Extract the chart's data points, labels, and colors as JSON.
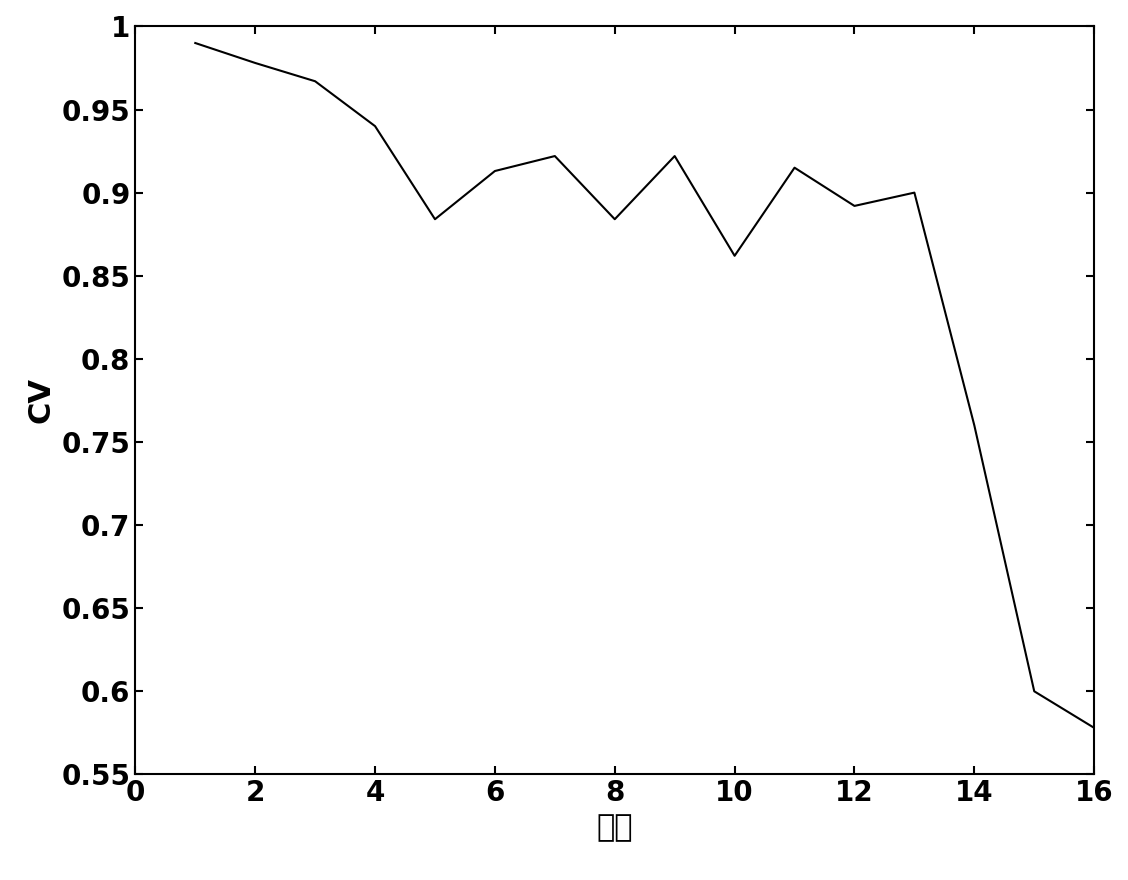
{
  "x": [
    1,
    2,
    3,
    4,
    5,
    6,
    7,
    8,
    9,
    10,
    11,
    12,
    13,
    14,
    15,
    16
  ],
  "y": [
    0.99,
    0.978,
    0.967,
    0.94,
    0.884,
    0.913,
    0.922,
    0.884,
    0.922,
    0.862,
    0.915,
    0.892,
    0.9,
    0.76,
    0.6,
    0.578
  ],
  "xlim": [
    0,
    16
  ],
  "ylim": [
    0.55,
    1.0
  ],
  "xticks": [
    0,
    2,
    4,
    6,
    8,
    10,
    12,
    14,
    16
  ],
  "yticks": [
    0.55,
    0.6,
    0.65,
    0.7,
    0.75,
    0.8,
    0.85,
    0.9,
    0.95,
    1.0
  ],
  "xlabel": "样本",
  "ylabel": "CV",
  "line_color": "#000000",
  "line_width": 1.5,
  "background_color": "#ffffff",
  "figure_size": [
    11.28,
    8.8
  ],
  "dpi": 100,
  "tick_fontsize": 20,
  "label_fontsize": 22
}
